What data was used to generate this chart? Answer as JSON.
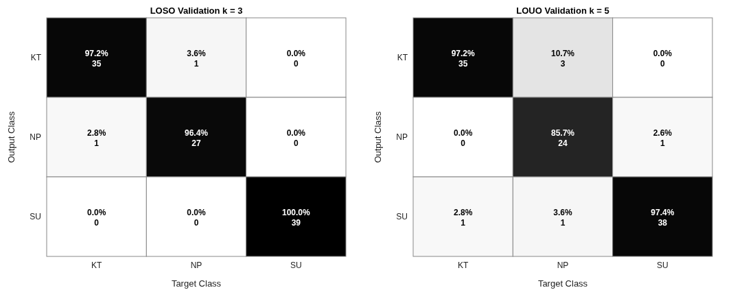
{
  "chart_data": [
    {
      "type": "heatmap",
      "title": "LOSO Validation k = 3",
      "xlabel": "Target Class",
      "ylabel": "Output Class",
      "categories": [
        "KT",
        "NP",
        "SU"
      ],
      "y_categories": [
        "KT",
        "NP",
        "SU"
      ],
      "cells": [
        [
          97.2,
          3.6,
          0.0
        ],
        [
          2.8,
          96.4,
          0.0
        ],
        [
          0.0,
          0.0,
          100.0
        ]
      ],
      "cell_labels": [
        [
          "97.2%",
          "3.6%",
          "0.0%"
        ],
        [
          "2.8%",
          "96.4%",
          "0.0%"
        ],
        [
          "0.0%",
          "0.0%",
          "100.0%"
        ]
      ],
      "annotations": [
        "35",
        "1",
        "0",
        "1",
        "27",
        "0",
        "0",
        "0",
        "39"
      ]
    },
    {
      "type": "heatmap",
      "title": "LOUO Validation k = 5",
      "xlabel": "Target Class",
      "ylabel": "Output Class",
      "categories": [
        "KT",
        "NP",
        "SU"
      ],
      "y_categories": [
        "KT",
        "NP",
        "SU"
      ],
      "cells": [
        [
          97.2,
          10.7,
          0.0
        ],
        [
          0.0,
          85.7,
          2.6
        ],
        [
          2.8,
          3.6,
          97.4
        ]
      ],
      "cell_labels": [
        [
          "97.2%",
          "10.7%",
          "0.0%"
        ],
        [
          "0.0%",
          "85.7%",
          "2.6%"
        ],
        [
          "2.8%",
          "3.6%",
          "97.4%"
        ]
      ],
      "annotations": [
        "35",
        "3",
        "0",
        "0",
        "24",
        "1",
        "1",
        "1",
        "38"
      ]
    }
  ]
}
